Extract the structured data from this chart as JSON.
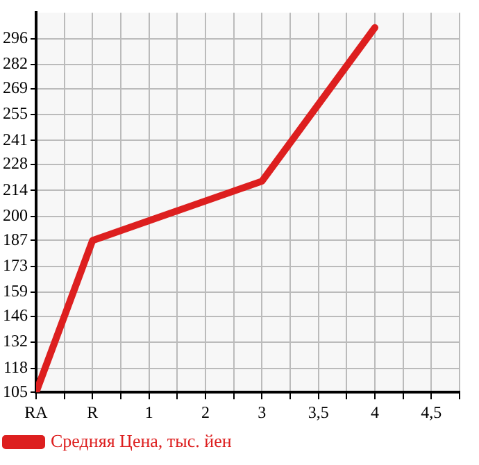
{
  "chart_data": {
    "type": "line",
    "categories": [
      "RA",
      "R",
      "1",
      "2",
      "3",
      "3,5",
      "4",
      "4,5"
    ],
    "series": [
      {
        "name": "Средняя Цена, тыс. йен",
        "color": "#dd1f1f",
        "values": [
          105,
          187,
          null,
          null,
          219,
          null,
          302,
          null
        ]
      }
    ],
    "ylim": [
      105,
      310
    ],
    "yticks": [
      105,
      118,
      132,
      146,
      159,
      173,
      187,
      200,
      214,
      228,
      241,
      255,
      269,
      282,
      296
    ],
    "grid": true,
    "legend": "bottom",
    "marker": "none",
    "line_style": "solid"
  }
}
